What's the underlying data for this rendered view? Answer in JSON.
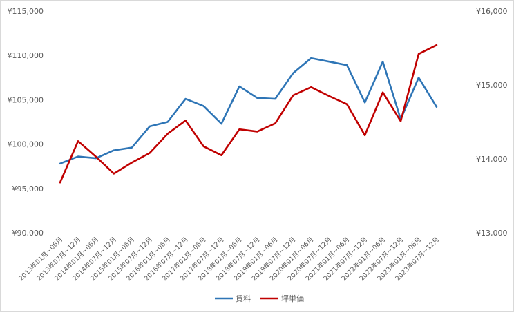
{
  "chart_data": {
    "type": "line",
    "categories": [
      "2013年01月~06月",
      "2013年07月~12月",
      "2014年01月~06月",
      "2014年07月~12月",
      "2015年01月~06月",
      "2015年07月~12月",
      "2016年01月~06月",
      "2016年07月~12月",
      "2017年01月~06月",
      "2017年07月~12月",
      "2018年01月~06月",
      "2018年07月~12月",
      "2019年01月~06月",
      "2019年07月~12月",
      "2020年01月~06月",
      "2020年07月~12月",
      "2021年01月~06月",
      "2021年07月~12月",
      "2022年01月~06月",
      "2022年07月~12月",
      "2023年01月~06月",
      "2023年07月~12月"
    ],
    "series": [
      {
        "name": "賃料",
        "axis": "left",
        "color": "#2e75b6",
        "values": [
          97800,
          98600,
          98400,
          99300,
          99600,
          102000,
          102500,
          105100,
          104300,
          102300,
          106500,
          105200,
          105100,
          108000,
          109700,
          109300,
          108900,
          104700,
          109300,
          102800,
          107500,
          104200
        ]
      },
      {
        "name": "坪単価",
        "axis": "right",
        "color": "#c00000",
        "values": [
          13680,
          14240,
          14030,
          13800,
          13950,
          14080,
          14340,
          14520,
          14170,
          14050,
          14400,
          14370,
          14480,
          14860,
          14970,
          14850,
          14740,
          14320,
          14900,
          14510,
          15420,
          15540
        ]
      }
    ],
    "y_left": {
      "min": 90000,
      "max": 115000,
      "ticks": [
        "¥90,000",
        "¥95,000",
        "¥100,000",
        "¥105,000",
        "¥110,000",
        "¥115,000"
      ]
    },
    "y_right": {
      "min": 13000,
      "max": 16000,
      "ticks": [
        "¥13,000",
        "¥14,000",
        "¥15,000",
        "¥16,000"
      ]
    },
    "legend_position": "bottom",
    "grid": false
  }
}
